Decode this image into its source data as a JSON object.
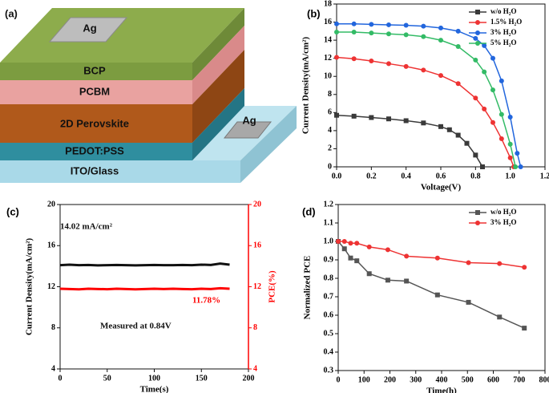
{
  "device_diagram": {
    "panel_label": "(a)",
    "layers": [
      "Ag",
      "BCP",
      "PCBM",
      "2D Perovskite",
      "PEDOT:PSS",
      "ITO/Glass",
      "Ag"
    ]
  },
  "chart_data": [
    {
      "type": "line",
      "panel_label": "(b)",
      "x_label": "Voltage(V)",
      "y_label": "Current Density(mA/cm²)",
      "xlim": [
        0,
        1.2
      ],
      "ylim": [
        0,
        18
      ],
      "xticks": [
        {
          "value": 0,
          "label": "0.0"
        },
        0.2,
        0.4,
        0.6,
        0.8,
        {
          "value": 1,
          "label": "1.0"
        },
        1.2
      ],
      "yticks": [
        0,
        2,
        4,
        6,
        8,
        10,
        12,
        14,
        16,
        18
      ],
      "legend": "upper right",
      "series": [
        {
          "name": "w/o H₂O",
          "color": "#3a3a3a",
          "marker": "square",
          "x": [
            0,
            0.1,
            0.2,
            0.3,
            0.4,
            0.5,
            0.6,
            0.65,
            0.7,
            0.75,
            0.8,
            0.84
          ],
          "values": [
            5.7,
            5.6,
            5.45,
            5.3,
            5.1,
            4.85,
            4.45,
            4.1,
            3.5,
            2.6,
            1.3,
            0
          ]
        },
        {
          "name": "1.5% H₂O",
          "color": "#ee3333",
          "marker": "circle",
          "x": [
            0,
            0.1,
            0.2,
            0.3,
            0.4,
            0.5,
            0.6,
            0.7,
            0.8,
            0.85,
            0.9,
            0.95,
            1,
            1.02
          ],
          "values": [
            12.1,
            11.95,
            11.7,
            11.4,
            11.1,
            10.7,
            10.1,
            9.2,
            7.6,
            6.4,
            4.9,
            3.1,
            1,
            0
          ]
        },
        {
          "name": "3% H₂O",
          "color": "#2266dd",
          "marker": "circle",
          "x": [
            0,
            0.1,
            0.2,
            0.3,
            0.4,
            0.5,
            0.6,
            0.7,
            0.8,
            0.85,
            0.9,
            0.95,
            1,
            1.04,
            1.06
          ],
          "values": [
            15.8,
            15.8,
            15.75,
            15.7,
            15.65,
            15.55,
            15.35,
            15,
            14.2,
            13.4,
            12,
            9.5,
            5.5,
            1.5,
            0
          ]
        },
        {
          "name": "5% H₂O",
          "color": "#33bb66",
          "marker": "circle",
          "x": [
            0,
            0.1,
            0.2,
            0.3,
            0.4,
            0.5,
            0.6,
            0.7,
            0.8,
            0.85,
            0.9,
            0.95,
            1,
            1.03
          ],
          "values": [
            14.9,
            14.9,
            14.8,
            14.7,
            14.6,
            14.4,
            14,
            13.3,
            11.8,
            10.5,
            8.5,
            5.8,
            2.5,
            0
          ]
        }
      ]
    },
    {
      "type": "line",
      "panel_label": "(c)",
      "x_label": "Time(s)",
      "y_label": "Current Density(mA/cm²)",
      "y2_label": "PCE(%)",
      "y2_color": "#ff0000",
      "xlim": [
        0,
        200
      ],
      "ylim": [
        4,
        20
      ],
      "y2lim": [
        4,
        20
      ],
      "xticks": [
        0,
        50,
        100,
        150,
        200
      ],
      "yticks": [
        4,
        8,
        12,
        16,
        20
      ],
      "y2ticks": [
        4,
        8,
        12,
        16,
        20
      ],
      "annotations": [
        {
          "text": "14.02 mA/cm²",
          "color": "#111111"
        },
        {
          "text": "11.78%",
          "color": "#ff0000"
        },
        {
          "text": "Measured at 0.84V",
          "color": "#111111"
        }
      ],
      "series": [
        {
          "color": "#111111",
          "x": [
            0,
            10,
            20,
            30,
            40,
            50,
            60,
            70,
            80,
            90,
            100,
            110,
            120,
            130,
            140,
            150,
            160,
            170,
            180
          ],
          "values": [
            14.1,
            14.15,
            14.1,
            14.12,
            14.08,
            14.1,
            14.12,
            14.1,
            14.08,
            14.1,
            14.12,
            14.1,
            14.1,
            14.12,
            14.1,
            14.15,
            14.12,
            14.25,
            14.15
          ]
        },
        {
          "color": "#ff0000",
          "axis": "y2",
          "x": [
            0,
            10,
            20,
            30,
            40,
            50,
            60,
            70,
            80,
            90,
            100,
            110,
            120,
            130,
            140,
            150,
            160,
            170,
            180
          ],
          "values": [
            11.8,
            11.78,
            11.75,
            11.8,
            11.78,
            11.76,
            11.8,
            11.78,
            11.75,
            11.78,
            11.8,
            11.78,
            11.8,
            11.78,
            11.76,
            11.8,
            11.78,
            11.85,
            11.8
          ]
        }
      ]
    },
    {
      "type": "line",
      "panel_label": "(d)",
      "x_label": "Time(h)",
      "y_label": "Normalized PCE",
      "xlim": [
        0,
        800
      ],
      "ylim": [
        0.3,
        1.2
      ],
      "xticks": [
        0,
        100,
        200,
        300,
        400,
        500,
        600,
        700,
        800
      ],
      "yticks": [
        0.3,
        0.4,
        0.5,
        0.6,
        0.7,
        0.8,
        0.9,
        {
          "value": 1,
          "label": "1.0"
        },
        1.1,
        1.2
      ],
      "legend": "upper right",
      "series": [
        {
          "name": "w/o H₂O",
          "color": "#555555",
          "marker": "square",
          "x": [
            0,
            24,
            48,
            72,
            120,
            192,
            264,
            384,
            504,
            624,
            720
          ],
          "values": [
            1,
            0.96,
            0.91,
            0.895,
            0.825,
            0.79,
            0.785,
            0.71,
            0.67,
            0.59,
            0.53
          ]
        },
        {
          "name": "3% H₂O",
          "color": "#ee3333",
          "marker": "circle",
          "x": [
            0,
            24,
            48,
            72,
            120,
            192,
            264,
            384,
            504,
            624,
            720
          ],
          "values": [
            1,
            1,
            0.99,
            0.99,
            0.97,
            0.955,
            0.92,
            0.91,
            0.885,
            0.88,
            0.86
          ]
        }
      ]
    }
  ]
}
